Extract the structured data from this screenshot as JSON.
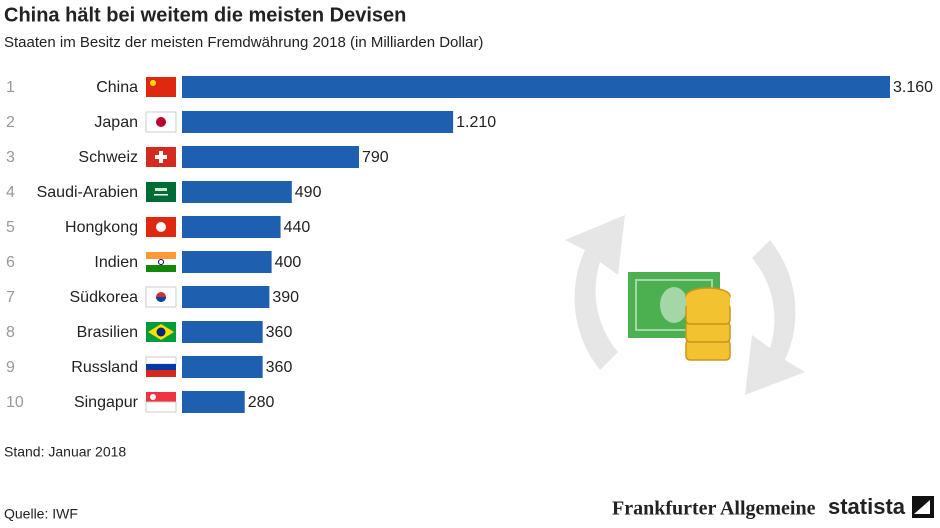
{
  "chart_data": {
    "type": "bar",
    "orientation": "horizontal",
    "title": "China hält bei weitem die meisten Devisen",
    "subtitle": "Staaten im Besitz der meisten Fremdwährung 2018 (in Milliarden Dollar)",
    "ranks": [
      1,
      2,
      3,
      4,
      5,
      6,
      7,
      8,
      9,
      10
    ],
    "categories": [
      "China",
      "Japan",
      "Schweiz",
      "Saudi-Arabien",
      "Hongkong",
      "Indien",
      "Südkorea",
      "Brasilien",
      "Russland",
      "Singapur"
    ],
    "values": [
      3160,
      1210,
      790,
      490,
      440,
      400,
      390,
      360,
      360,
      280
    ],
    "value_labels": [
      "3.160",
      "1.210",
      "790",
      "490",
      "440",
      "400",
      "390",
      "360",
      "360",
      "280"
    ],
    "color": "#1f5fb0",
    "note": "Stand: Januar 2018",
    "source": "Quelle: IWF",
    "publisher": "Frankfurter Allgemeine",
    "brand": "statista"
  }
}
